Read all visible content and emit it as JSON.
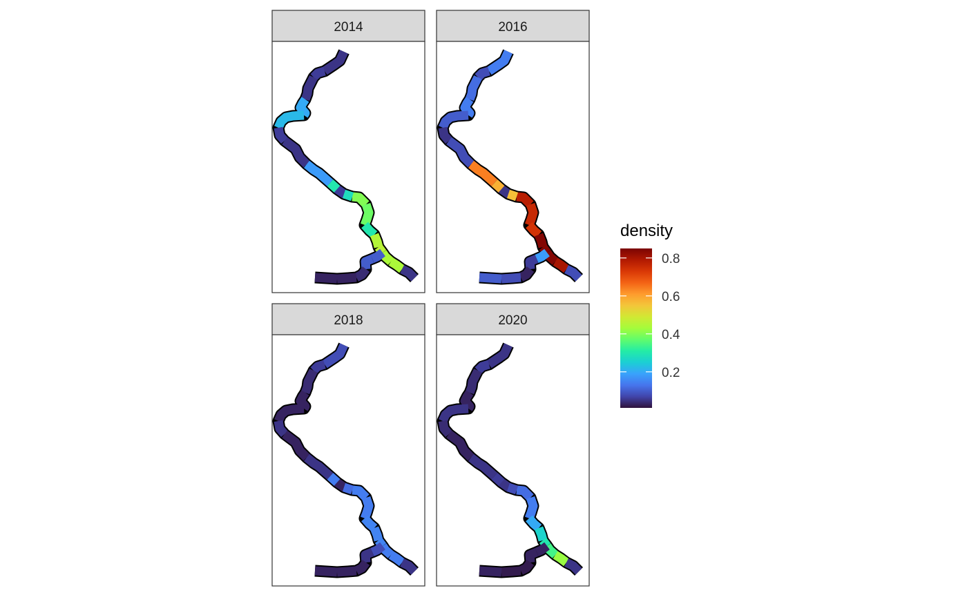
{
  "panels": [
    {
      "label": "2014",
      "densities": [
        0.05,
        0.06,
        0.05,
        0.2,
        0.22,
        0.06,
        0.05,
        0.18,
        0.06,
        0.4,
        0.38,
        0.3,
        0.45,
        0.46,
        0.44,
        0.44,
        0.05,
        0.3,
        0.28,
        0.26,
        0.12,
        0.15,
        0.08,
        0.1,
        0.1,
        0.04,
        0.03,
        0.03
      ]
    },
    {
      "label": "2016",
      "densities": [
        0.14,
        0.08,
        0.12,
        0.14,
        0.1,
        0.05,
        0.08,
        0.64,
        0.05,
        0.78,
        0.76,
        0.74,
        0.84,
        0.84,
        0.84,
        0.8,
        0.08,
        0.58,
        0.56,
        0.26,
        0.25,
        0.24,
        0.18,
        0.18,
        0.06,
        0.03,
        0.08,
        0.1
      ]
    },
    {
      "label": "2018",
      "densities": [
        0.08,
        0.06,
        0.04,
        0.03,
        0.03,
        0.05,
        0.03,
        0.05,
        0.03,
        0.14,
        0.14,
        0.15,
        0.15,
        0.15,
        0.14,
        0.14,
        0.05,
        0.14,
        0.12,
        0.1,
        0.12,
        0.08,
        0.1,
        0.08,
        0.05,
        0.03,
        0.03,
        0.03
      ]
    },
    {
      "label": "2020",
      "densities": [
        0.05,
        0.06,
        0.04,
        0.03,
        0.05,
        0.04,
        0.03,
        0.05,
        0.05,
        0.12,
        0.14,
        0.2,
        0.26,
        0.3,
        0.34,
        0.42,
        0.05,
        0.06,
        0.08,
        0.07,
        0.17,
        0.16,
        0.14,
        0.03,
        0.03,
        0.02,
        0.02,
        0.03
      ]
    }
  ],
  "legend": {
    "title": "density",
    "ticks": [
      {
        "value": 0.2,
        "label": "0.2"
      },
      {
        "value": 0.4,
        "label": "0.4"
      },
      {
        "value": 0.6,
        "label": "0.6"
      },
      {
        "value": 0.8,
        "label": "0.8"
      }
    ],
    "range": [
      0.01,
      0.85
    ],
    "palette": [
      "#30123b",
      "#4145ab",
      "#4675ed",
      "#39a2fc",
      "#1bcfd4",
      "#24eca6",
      "#61fc6c",
      "#a4fc3b",
      "#d1e834",
      "#f3c63a",
      "#fe9b2d",
      "#f36315",
      "#d93806",
      "#b11901",
      "#7a0403"
    ]
  },
  "chart_data": {
    "type": "faceted-map",
    "facets": [
      "2014",
      "2016",
      "2018",
      "2020"
    ],
    "fill": "density",
    "scale_range": [
      0.01,
      0.85
    ],
    "legend_placement": "right"
  }
}
